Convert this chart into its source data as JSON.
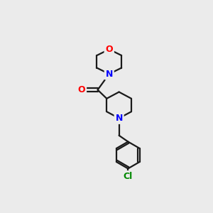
{
  "background_color": "#ebebeb",
  "atom_colors": {
    "N": "#0000ff",
    "O": "#ff0000",
    "Cl": "#008800"
  },
  "bond_color": "#1a1a1a",
  "bond_width": 1.6,
  "figsize": [
    3.0,
    3.0
  ],
  "dpi": 100
}
